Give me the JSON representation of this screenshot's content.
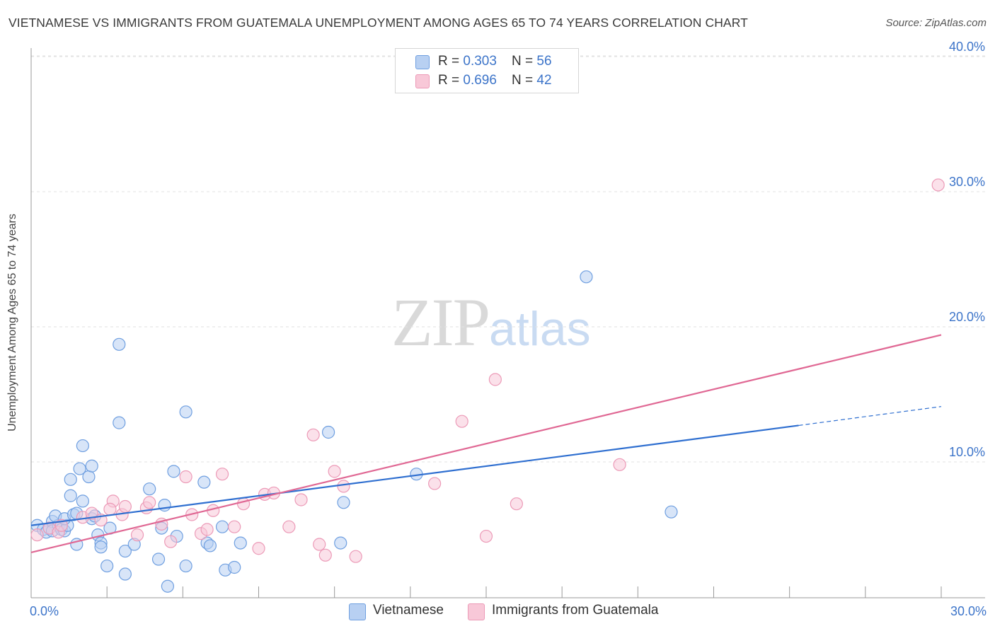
{
  "title": "VIETNAMESE VS IMMIGRANTS FROM GUATEMALA UNEMPLOYMENT AMONG AGES 65 TO 74 YEARS CORRELATION CHART",
  "source": "Source: ZipAtlas.com",
  "watermark": {
    "zip": "ZIP",
    "atlas": "atlas"
  },
  "legend": {
    "r_label": "R = ",
    "n_label": "N = ",
    "rows": [
      {
        "r": "0.303",
        "n": "56"
      },
      {
        "r": "0.696",
        "n": "42"
      }
    ]
  },
  "chart_data": {
    "type": "scatter",
    "title": "VIETNAMESE VS IMMIGRANTS FROM GUATEMALA UNEMPLOYMENT AMONG AGES 65 TO 74 YEARS CORRELATION CHART",
    "xlabel": "",
    "ylabel": "Unemployment Among Ages 65 to 74 years",
    "xlim": [
      0,
      30
    ],
    "ylim": [
      0,
      42
    ],
    "x_tick_labels": [
      "0.0%",
      "30.0%"
    ],
    "y_ticks": [
      10,
      20,
      30,
      40
    ],
    "y_tick_labels": [
      "10.0%",
      "20.0%",
      "30.0%",
      "40.0%"
    ],
    "grid": true,
    "legend_position": "bottom",
    "series": [
      {
        "name": "Vietnamese",
        "color": "#6f9fe0",
        "fill": "#b8d0f2",
        "line_color": "#2f6fd0",
        "r": "0.303",
        "n": "56",
        "trend": {
          "x0": 0,
          "y0": 5.3,
          "x1": 25.3,
          "y1": 12.7,
          "dash_to_x": 30,
          "dash_to_y": 14.1
        },
        "points": [
          [
            0.2,
            5.3
          ],
          [
            0.4,
            5.0
          ],
          [
            0.5,
            4.8
          ],
          [
            0.6,
            5.1
          ],
          [
            0.7,
            5.6
          ],
          [
            0.7,
            4.9
          ],
          [
            0.9,
            5.3
          ],
          [
            0.8,
            6.0
          ],
          [
            1.0,
            5.0
          ],
          [
            1.1,
            4.9
          ],
          [
            1.2,
            5.3
          ],
          [
            1.1,
            5.8
          ],
          [
            1.3,
            7.5
          ],
          [
            1.4,
            6.1
          ],
          [
            1.3,
            8.7
          ],
          [
            1.5,
            6.2
          ],
          [
            1.5,
            3.9
          ],
          [
            1.6,
            9.5
          ],
          [
            1.7,
            7.1
          ],
          [
            1.7,
            11.2
          ],
          [
            1.9,
            8.9
          ],
          [
            2.0,
            5.8
          ],
          [
            2.0,
            9.7
          ],
          [
            2.1,
            6.0
          ],
          [
            2.2,
            4.6
          ],
          [
            2.3,
            4.0
          ],
          [
            2.3,
            3.7
          ],
          [
            2.5,
            2.3
          ],
          [
            2.6,
            5.1
          ],
          [
            2.9,
            12.9
          ],
          [
            2.9,
            18.7
          ],
          [
            3.1,
            3.4
          ],
          [
            3.1,
            1.7
          ],
          [
            3.4,
            3.9
          ],
          [
            3.9,
            8.0
          ],
          [
            4.2,
            2.8
          ],
          [
            4.3,
            5.1
          ],
          [
            4.4,
            6.8
          ],
          [
            4.5,
            0.8
          ],
          [
            4.7,
            9.3
          ],
          [
            4.8,
            4.5
          ],
          [
            5.1,
            13.7
          ],
          [
            5.1,
            2.3
          ],
          [
            5.7,
            8.5
          ],
          [
            5.8,
            4.0
          ],
          [
            5.9,
            3.8
          ],
          [
            6.3,
            5.2
          ],
          [
            6.4,
            2.0
          ],
          [
            6.7,
            2.2
          ],
          [
            6.9,
            4.0
          ],
          [
            9.8,
            12.2
          ],
          [
            10.2,
            4.0
          ],
          [
            10.3,
            7.0
          ],
          [
            12.7,
            9.1
          ],
          [
            18.3,
            23.7
          ],
          [
            21.1,
            6.3
          ]
        ]
      },
      {
        "name": "Immigrants from Guatemala",
        "color": "#ec9ab7",
        "fill": "#f8c8d8",
        "line_color": "#e06894",
        "r": "0.696",
        "n": "42",
        "trend": {
          "x0": 0,
          "y0": 3.3,
          "x1": 30,
          "y1": 19.4
        },
        "points": [
          [
            0.2,
            4.6
          ],
          [
            0.6,
            5.1
          ],
          [
            0.9,
            4.8
          ],
          [
            1.0,
            5.3
          ],
          [
            1.7,
            5.9
          ],
          [
            2.0,
            6.2
          ],
          [
            2.3,
            5.7
          ],
          [
            2.7,
            7.1
          ],
          [
            2.6,
            6.5
          ],
          [
            3.0,
            6.1
          ],
          [
            3.1,
            6.7
          ],
          [
            3.5,
            4.6
          ],
          [
            3.8,
            6.6
          ],
          [
            3.9,
            7.0
          ],
          [
            4.3,
            5.4
          ],
          [
            4.6,
            4.1
          ],
          [
            5.1,
            8.9
          ],
          [
            5.3,
            6.1
          ],
          [
            5.6,
            4.7
          ],
          [
            5.8,
            5.0
          ],
          [
            6.0,
            6.4
          ],
          [
            6.3,
            9.1
          ],
          [
            6.7,
            5.2
          ],
          [
            7.0,
            6.9
          ],
          [
            7.5,
            3.6
          ],
          [
            7.7,
            7.6
          ],
          [
            8.0,
            7.7
          ],
          [
            8.5,
            5.2
          ],
          [
            8.9,
            7.2
          ],
          [
            9.3,
            12.0
          ],
          [
            9.5,
            3.9
          ],
          [
            9.7,
            3.1
          ],
          [
            10.0,
            9.3
          ],
          [
            10.3,
            8.2
          ],
          [
            10.7,
            3.0
          ],
          [
            13.3,
            8.4
          ],
          [
            14.2,
            13.0
          ],
          [
            15.0,
            4.5
          ],
          [
            15.3,
            16.1
          ],
          [
            16.0,
            6.9
          ],
          [
            19.4,
            9.8
          ],
          [
            29.9,
            30.5
          ]
        ]
      }
    ]
  }
}
